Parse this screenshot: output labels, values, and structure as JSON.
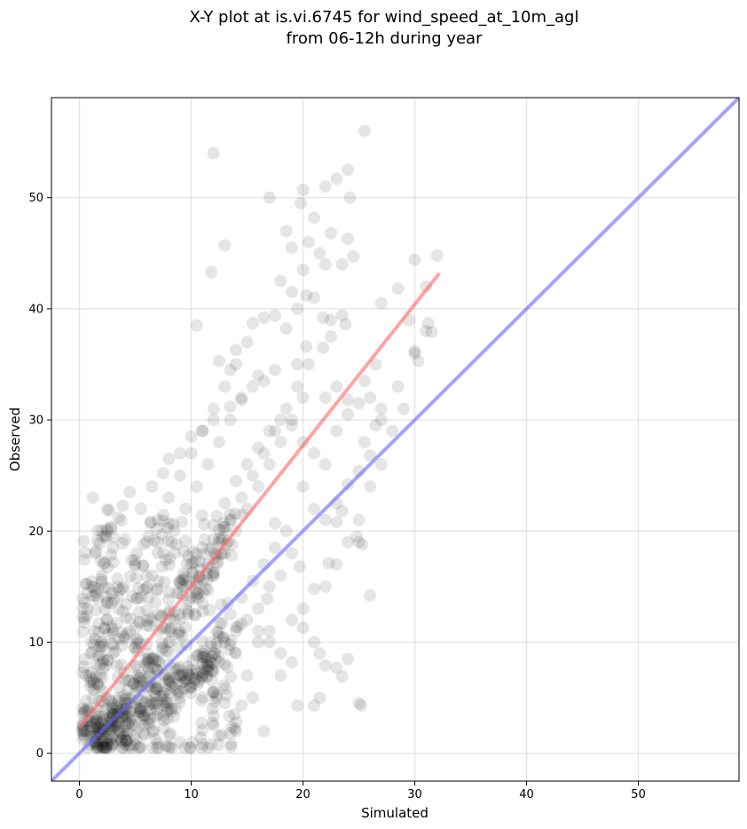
{
  "chart_data": {
    "type": "scatter",
    "title": "X-Y plot at is.vi.6745 for wind_speed_at_10m_agl",
    "subtitle": "from 06-12h during year",
    "xlabel": "Simulated",
    "ylabel": "Observed",
    "xlim": [
      -2.5,
      59
    ],
    "ylim": [
      -2.5,
      59
    ],
    "xticks": [
      0,
      10,
      20,
      30,
      40,
      50
    ],
    "yticks": [
      0,
      10,
      20,
      30,
      40,
      50
    ],
    "grid": true,
    "point_color": "#000000",
    "series": [
      {
        "kind": "points",
        "points": [
          [
            1.0,
            1.5
          ],
          [
            1.5,
            3.0
          ],
          [
            2.0,
            2.0
          ],
          [
            2.5,
            4.0
          ],
          [
            3.0,
            3.5
          ],
          [
            3.5,
            5.0
          ],
          [
            4.0,
            4.0
          ],
          [
            4.5,
            6.5
          ],
          [
            5.0,
            5.5
          ],
          [
            5.5,
            7.0
          ],
          [
            6.0,
            6.0
          ],
          [
            6.5,
            8.5
          ],
          [
            7.0,
            7.5
          ],
          [
            7.5,
            9.5
          ],
          [
            8.0,
            10.0
          ],
          [
            8.5,
            12.0
          ],
          [
            9.0,
            11.0
          ],
          [
            9.5,
            13.0
          ],
          [
            10.0,
            14.0
          ],
          [
            10.5,
            15.5
          ],
          [
            11.0,
            13.5
          ],
          [
            11.5,
            17.0
          ],
          [
            12.0,
            16.0
          ],
          [
            12.5,
            19.0
          ],
          [
            13.0,
            18.0
          ],
          [
            13.5,
            21.0
          ],
          [
            14.0,
            20.0
          ],
          [
            14.5,
            23.0
          ],
          [
            15.0,
            22.0
          ],
          [
            15.5,
            25.0
          ],
          [
            16.0,
            24.0
          ],
          [
            16.5,
            27.0
          ],
          [
            17.0,
            26.0
          ],
          [
            17.5,
            29.0
          ],
          [
            18.0,
            28.0
          ],
          [
            18.5,
            31.0
          ],
          [
            19.0,
            30.0
          ],
          [
            19.5,
            33.0
          ],
          [
            20.0,
            32.0
          ],
          [
            20.5,
            35.0
          ],
          [
            1.0,
            6.0
          ],
          [
            1.5,
            8.0
          ],
          [
            2.0,
            10.0
          ],
          [
            2.5,
            12.0
          ],
          [
            3.0,
            9.0
          ],
          [
            3.5,
            13.0
          ],
          [
            4.0,
            15.0
          ],
          [
            4.5,
            11.0
          ],
          [
            5.0,
            17.0
          ],
          [
            5.5,
            14.0
          ],
          [
            6.0,
            19.0
          ],
          [
            6.5,
            16.0
          ],
          [
            7.0,
            21.0
          ],
          [
            7.5,
            18.0
          ],
          [
            8.0,
            23.0
          ],
          [
            8.5,
            20.0
          ],
          [
            9.0,
            25.0
          ],
          [
            9.5,
            22.0
          ],
          [
            10.0,
            27.0
          ],
          [
            10.5,
            24.0
          ],
          [
            11.0,
            29.0
          ],
          [
            11.5,
            26.0
          ],
          [
            12.0,
            31.0
          ],
          [
            12.5,
            28.0
          ],
          [
            13.0,
            33.0
          ],
          [
            13.5,
            30.0
          ],
          [
            14.0,
            35.0
          ],
          [
            14.5,
            32.0
          ],
          [
            15.0,
            37.0
          ],
          [
            16.0,
            34.0
          ],
          [
            2.0,
            0.8
          ],
          [
            3.0,
            1.5
          ],
          [
            4.0,
            2.0
          ],
          [
            5.0,
            2.5
          ],
          [
            6.0,
            3.0
          ],
          [
            7.0,
            3.5
          ],
          [
            8.0,
            4.0
          ],
          [
            9.0,
            5.0
          ],
          [
            10.0,
            6.0
          ],
          [
            11.0,
            7.0
          ],
          [
            12.0,
            5.5
          ],
          [
            13.0,
            8.0
          ],
          [
            14.0,
            9.0
          ],
          [
            15.0,
            7.0
          ],
          [
            16.0,
            10.0
          ],
          [
            17.0,
            11.0
          ],
          [
            18.0,
            9.0
          ],
          [
            19.0,
            12.0
          ],
          [
            20.0,
            13.0
          ],
          [
            21.0,
            10.0
          ],
          [
            22.0,
            15.0
          ],
          [
            23.0,
            17.0
          ],
          [
            24.0,
            19.0
          ],
          [
            25.0,
            21.0
          ],
          [
            26.0,
            24.0
          ],
          [
            27.0,
            26.0
          ],
          [
            28.0,
            29.0
          ],
          [
            29.0,
            31.0
          ],
          [
            30.0,
            36.0
          ],
          [
            31.0,
            38.0
          ],
          [
            0.5,
            2.0
          ],
          [
            0.8,
            4.0
          ],
          [
            1.2,
            5.0
          ],
          [
            0.6,
            7.0
          ],
          [
            1.0,
            9.0
          ],
          [
            1.3,
            11.0
          ],
          [
            0.7,
            13.0
          ],
          [
            1.1,
            15.0
          ],
          [
            1.4,
            18.0
          ],
          [
            1.2,
            23.0
          ],
          [
            17.0,
            50.0
          ],
          [
            12.0,
            54.0
          ],
          [
            25.5,
            56.0
          ],
          [
            24.0,
            52.5
          ],
          [
            22.0,
            51.0
          ],
          [
            23.0,
            51.7
          ],
          [
            20.0,
            50.7
          ],
          [
            19.8,
            49.5
          ],
          [
            21.0,
            48.2
          ],
          [
            24.2,
            50.0
          ],
          [
            20.5,
            46.0
          ],
          [
            21.5,
            45.0
          ],
          [
            22.5,
            46.8
          ],
          [
            18.5,
            47.0
          ],
          [
            19.0,
            45.5
          ],
          [
            13.0,
            45.7
          ],
          [
            11.8,
            43.3
          ],
          [
            20.0,
            43.5
          ],
          [
            22.0,
            44.0
          ],
          [
            23.5,
            44.0
          ],
          [
            24.0,
            46.3
          ],
          [
            24.5,
            44.7
          ],
          [
            32.0,
            44.8
          ],
          [
            31.0,
            42.0
          ],
          [
            30.0,
            44.4
          ],
          [
            28.5,
            41.8
          ],
          [
            27.0,
            40.5
          ],
          [
            29.5,
            39.0
          ],
          [
            31.2,
            38.7
          ],
          [
            31.5,
            37.9
          ],
          [
            30.0,
            36.2
          ],
          [
            30.3,
            35.3
          ],
          [
            28.5,
            33.0
          ],
          [
            27.0,
            31.0
          ],
          [
            26.5,
            29.5
          ],
          [
            25.5,
            28.0
          ],
          [
            26.0,
            26.8
          ],
          [
            25.0,
            25.4
          ],
          [
            24.0,
            24.2
          ],
          [
            23.0,
            22.5
          ],
          [
            25.0,
            19.0
          ],
          [
            25.3,
            18.8
          ],
          [
            24.8,
            19.5
          ],
          [
            26.0,
            14.2
          ],
          [
            23.0,
            20.8
          ],
          [
            23.5,
            21.8
          ],
          [
            24.0,
            8.5
          ],
          [
            23.0,
            7.7
          ],
          [
            22.0,
            7.9
          ],
          [
            21.5,
            9.0
          ],
          [
            23.5,
            6.9
          ],
          [
            21.5,
            5.0
          ],
          [
            21.0,
            4.3
          ],
          [
            19.5,
            4.3
          ],
          [
            25.0,
            4.5
          ],
          [
            25.2,
            4.3
          ],
          [
            18.0,
            7.0
          ],
          [
            19.0,
            8.2
          ],
          [
            20.0,
            11.3
          ],
          [
            21.0,
            14.8
          ],
          [
            22.3,
            17.1
          ],
          [
            19.7,
            16.8
          ],
          [
            17.5,
            20.7
          ],
          [
            16.8,
            13.9
          ],
          [
            16.0,
            11.0
          ],
          [
            17.0,
            10.0
          ],
          [
            15.5,
            5.0
          ],
          [
            14.5,
            4.3
          ],
          [
            13.0,
            4.5
          ],
          [
            12.0,
            2.5
          ],
          [
            13.5,
            1.8
          ],
          [
            16.5,
            2.0
          ],
          [
            11.0,
            0.8
          ],
          [
            14.0,
            2.0
          ],
          [
            9.0,
            1.0
          ],
          [
            7.0,
            0.9
          ],
          [
            5.5,
            0.6
          ],
          [
            4.5,
            0.7
          ],
          [
            3.0,
            0.8
          ],
          [
            2.0,
            1.2
          ],
          [
            10.5,
            38.5
          ],
          [
            12.5,
            35.3
          ],
          [
            13.5,
            34.5
          ],
          [
            14.0,
            36.3
          ],
          [
            15.5,
            38.7
          ],
          [
            16.5,
            39.2
          ],
          [
            17.5,
            39.4
          ],
          [
            18.0,
            42.5
          ],
          [
            19.0,
            41.5
          ],
          [
            18.5,
            38.2
          ],
          [
            19.5,
            40.0
          ],
          [
            20.3,
            41.2
          ],
          [
            21.0,
            41.0
          ],
          [
            21.8,
            39.2
          ],
          [
            22.5,
            39.0
          ],
          [
            23.5,
            39.4
          ],
          [
            23.8,
            38.6
          ],
          [
            21.8,
            36.5
          ],
          [
            22.5,
            37.5
          ],
          [
            20.3,
            36.6
          ],
          [
            19.5,
            35.0
          ],
          [
            17.5,
            34.5
          ],
          [
            16.5,
            33.5
          ],
          [
            15.5,
            33.0
          ],
          [
            14.5,
            31.8
          ],
          [
            13.5,
            31.2
          ],
          [
            12.0,
            30.0
          ],
          [
            11.0,
            29.0
          ],
          [
            10.0,
            28.5
          ],
          [
            9.0,
            27.0
          ],
          [
            8.0,
            26.5
          ],
          [
            7.5,
            25.2
          ],
          [
            6.5,
            24.0
          ],
          [
            5.5,
            22.0
          ],
          [
            4.5,
            23.5
          ],
          [
            3.5,
            21.2
          ],
          [
            2.5,
            20.0
          ],
          [
            3.0,
            18.5
          ],
          [
            2.0,
            16.0
          ],
          [
            1.5,
            14.5
          ],
          [
            4.0,
            10.5
          ],
          [
            5.0,
            9.5
          ],
          [
            6.0,
            11.5
          ],
          [
            7.0,
            12.5
          ],
          [
            8.0,
            14.5
          ],
          [
            9.0,
            15.5
          ],
          [
            10.0,
            17.0
          ],
          [
            11.0,
            18.5
          ],
          [
            12.0,
            20.5
          ],
          [
            13.0,
            22.5
          ],
          [
            14.0,
            24.5
          ],
          [
            15.0,
            26.0
          ],
          [
            16.0,
            27.5
          ],
          [
            17.0,
            29.0
          ],
          [
            18.0,
            30.0
          ],
          [
            19.0,
            29.5
          ],
          [
            20.0,
            28.0
          ],
          [
            21.0,
            27.0
          ],
          [
            22.0,
            26.0
          ],
          [
            23.0,
            29.0
          ],
          [
            24.0,
            30.5
          ],
          [
            25.0,
            31.5
          ],
          [
            26.0,
            32.0
          ],
          [
            27.0,
            30.0
          ],
          [
            22.0,
            32.0
          ],
          [
            23.0,
            33.0
          ],
          [
            24.0,
            31.8
          ],
          [
            25.5,
            33.5
          ],
          [
            26.5,
            35.0
          ],
          [
            20.0,
            24.0
          ],
          [
            21.0,
            22.0
          ],
          [
            22.0,
            21.0
          ],
          [
            19.0,
            18.0
          ],
          [
            18.0,
            16.0
          ],
          [
            17.0,
            15.0
          ],
          [
            16.0,
            13.0
          ],
          [
            15.0,
            12.0
          ],
          [
            14.0,
            11.0
          ],
          [
            13.0,
            10.0
          ],
          [
            12.0,
            9.0
          ],
          [
            11.0,
            8.0
          ],
          [
            10.0,
            7.5
          ],
          [
            9.0,
            7.0
          ],
          [
            8.0,
            6.5
          ],
          [
            7.0,
            6.0
          ],
          [
            6.0,
            5.0
          ],
          [
            5.0,
            4.5
          ],
          [
            4.0,
            3.5
          ],
          [
            3.0,
            2.5
          ],
          [
            2.0,
            3.0
          ],
          [
            1.0,
            2.5
          ],
          [
            1.5,
            1.0
          ],
          [
            0.5,
            1.5
          ],
          [
            2.5,
            1.5
          ],
          [
            3.5,
            2.0
          ],
          [
            4.5,
            3.0
          ],
          [
            5.5,
            3.8
          ],
          [
            6.5,
            4.5
          ],
          [
            7.5,
            5.2
          ],
          [
            8.5,
            5.8
          ],
          [
            9.5,
            6.5
          ],
          [
            10.5,
            7.2
          ],
          [
            11.5,
            8.5
          ],
          [
            12.5,
            10.5
          ],
          [
            13.5,
            12.5
          ],
          [
            14.5,
            14.0
          ],
          [
            15.5,
            15.5
          ],
          [
            16.5,
            17.0
          ],
          [
            17.5,
            18.5
          ],
          [
            18.5,
            20.0
          ]
        ]
      },
      {
        "kind": "regression",
        "color": "#ff6666",
        "x": [
          0,
          32.2
        ],
        "y": [
          2.3,
          43.2
        ]
      },
      {
        "kind": "identity",
        "color": "#6666ff",
        "x": [
          -2.5,
          59
        ],
        "y": [
          -2.5,
          59
        ]
      }
    ]
  }
}
